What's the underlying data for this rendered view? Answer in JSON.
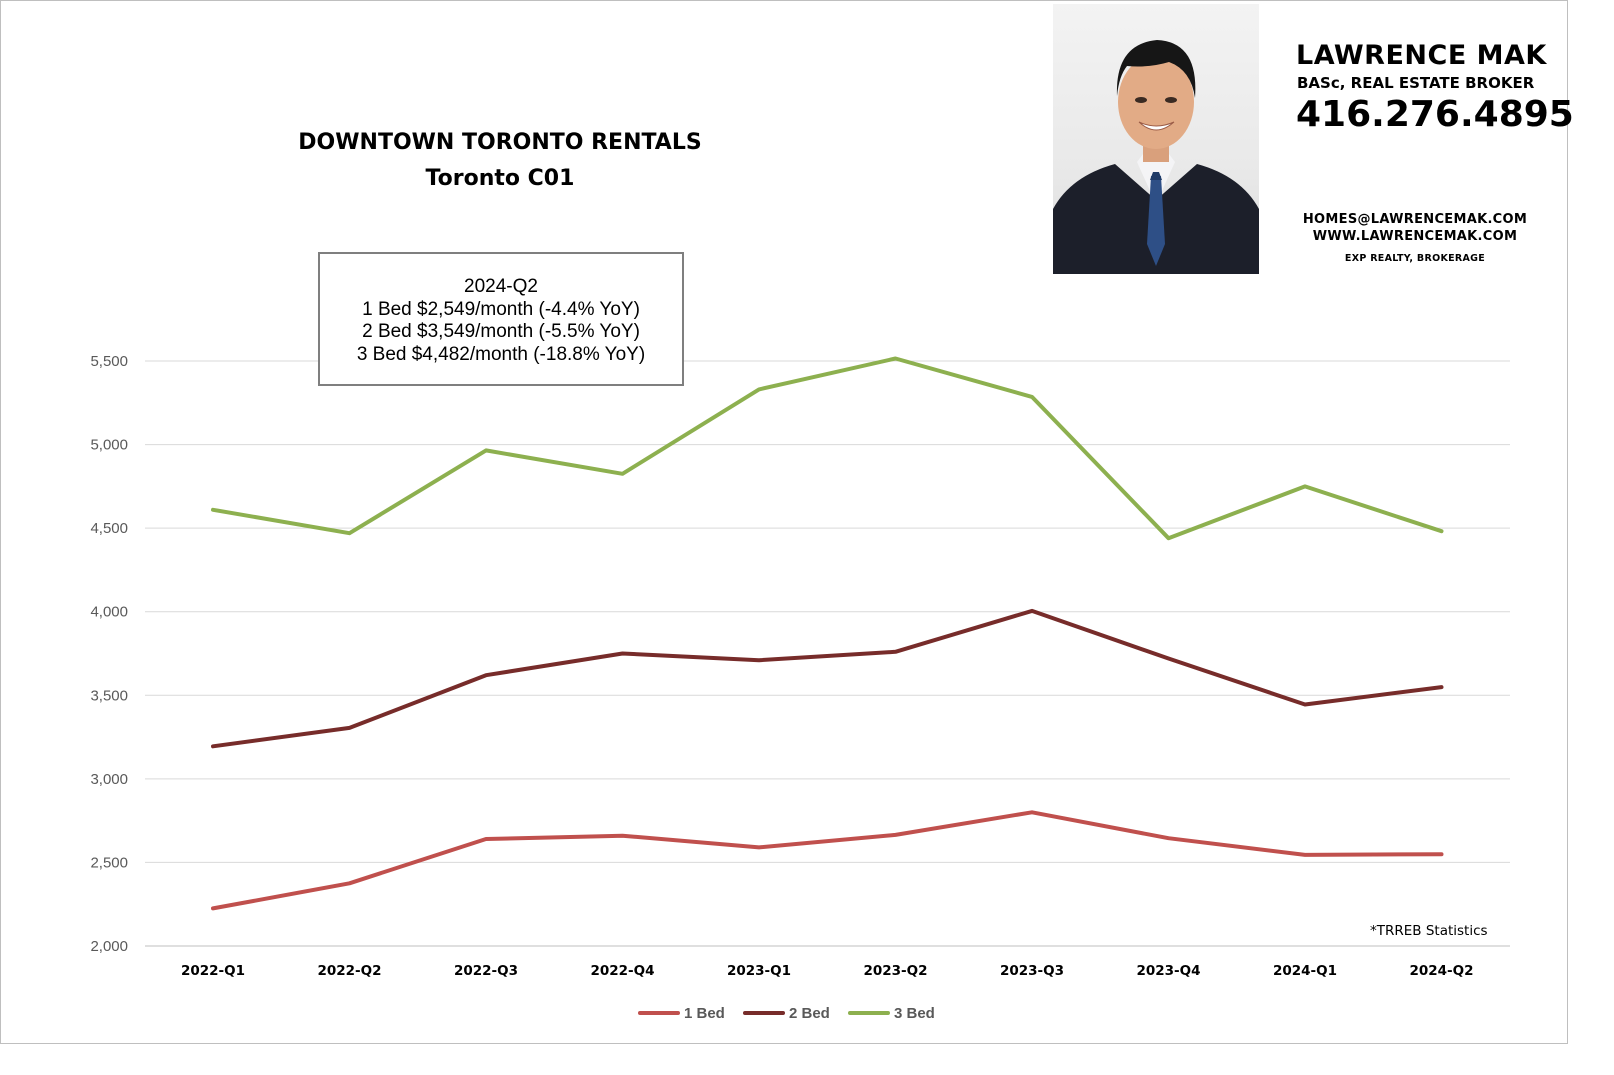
{
  "chart_data": {
    "type": "line",
    "title": "DOWNTOWN TORONTO RENTALS",
    "subtitle": "Toronto C01",
    "categories": [
      "2022-Q1",
      "2022-Q2",
      "2022-Q3",
      "2022-Q4",
      "2023-Q1",
      "2023-Q2",
      "2023-Q3",
      "2023-Q4",
      "2024-Q1",
      "2024-Q2"
    ],
    "series": [
      {
        "name": "1 Bed",
        "color": "#c0504d",
        "values": [
          2225,
          2375,
          2640,
          2660,
          2590,
          2665,
          2800,
          2645,
          2545,
          2549
        ]
      },
      {
        "name": "2 Bed",
        "color": "#772c2a",
        "values": [
          3195,
          3305,
          3620,
          3750,
          3710,
          3760,
          4005,
          3720,
          3445,
          3549
        ]
      },
      {
        "name": "3 Bed",
        "color": "#8db04f",
        "values": [
          4610,
          4470,
          4965,
          4825,
          5330,
          5515,
          5285,
          4440,
          4750,
          4482
        ]
      }
    ],
    "ylim": [
      2000,
      5500
    ],
    "yticks": [
      2000,
      2500,
      3000,
      3500,
      4000,
      4500,
      5000,
      5500
    ],
    "ytick_labels": [
      "2,000",
      "2,500",
      "3,000",
      "3,500",
      "4,000",
      "4,500",
      "5,000",
      "5,500"
    ],
    "xlabel": "",
    "ylabel": "",
    "grid": true,
    "legend_position": "bottom",
    "annotation": {
      "lines": [
        "2024-Q2",
        "1 Bed $2,549/month (-4.4% YoY)",
        "2 Bed $3,549/month (-5.5% YoY)",
        "3 Bed $4,482/month (-18.8% YoY)"
      ]
    },
    "source_note": "*TRREB Statistics"
  },
  "agent": {
    "name": "LAWRENCE MAK",
    "credentials": "BASc, REAL ESTATE BROKER",
    "phone": "416.276.4895",
    "email": "HOMES@LAWRENCEMAK.COM",
    "website": "WWW.LAWRENCEMAK.COM",
    "brokerage": "EXP REALTY, BROKERAGE"
  }
}
